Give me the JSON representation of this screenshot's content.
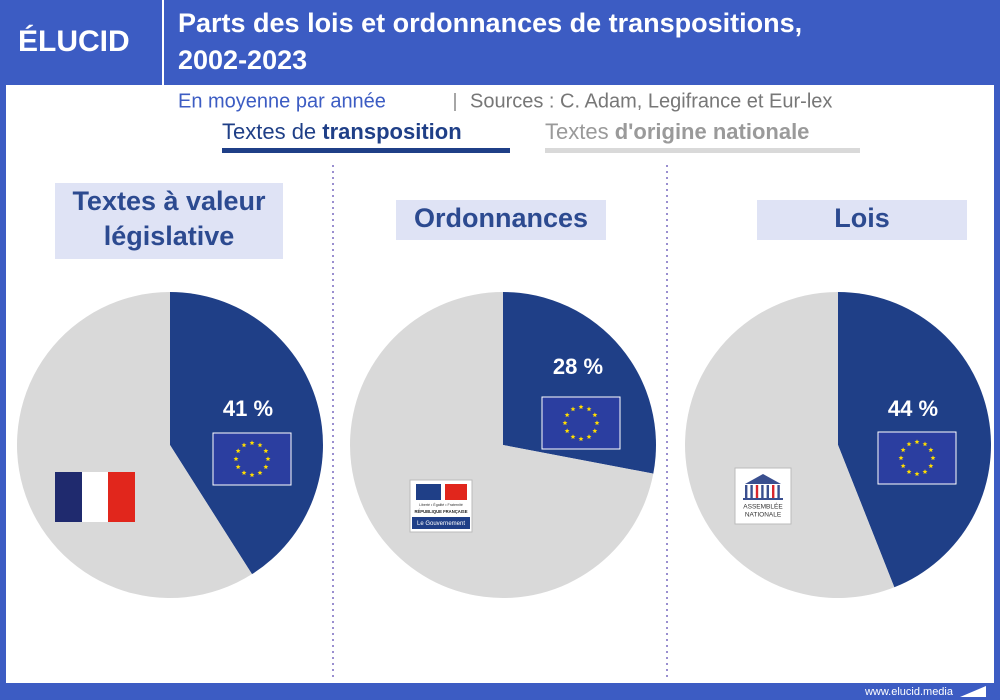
{
  "logo": "ÉLUCID",
  "header": {
    "title": [
      "Parts des lois et ordonnances de transpositions,",
      "2002-2023"
    ],
    "subtitle": "En moyenne par année",
    "sources": "Sources : C. Adam, Legifrance et Eur-lex"
  },
  "legend": [
    {
      "name": [
        "Textes de",
        "transposition"
      ],
      "color": "#1f3f87"
    },
    {
      "name": [
        "Textes",
        "d'origine nationale"
      ],
      "color": "#d9d9d9"
    }
  ],
  "chart_data": [
    {
      "type": "pie",
      "title": [
        "Textes à valeur",
        "législative"
      ],
      "values": [
        41,
        59
      ],
      "value_labels": [
        "41 %",
        null
      ]
    },
    {
      "type": "pie",
      "title": [
        "Ordonnances"
      ],
      "values": [
        28,
        72
      ],
      "value_labels": [
        "28 %",
        null
      ]
    },
    {
      "type": "pie",
      "title": [
        "Lois"
      ],
      "values": [
        44,
        56
      ],
      "value_labels": [
        "44 %",
        null
      ]
    }
  ],
  "icons": {
    "government": [
      "Liberté • Égalité • Fraternité",
      "RÉPUBLIQUE FRANÇAISE",
      "Le Gouvernement"
    ],
    "assembly": [
      "ASSEMBLÉE",
      "NATIONALE"
    ]
  },
  "footer": "www.elucid.media"
}
